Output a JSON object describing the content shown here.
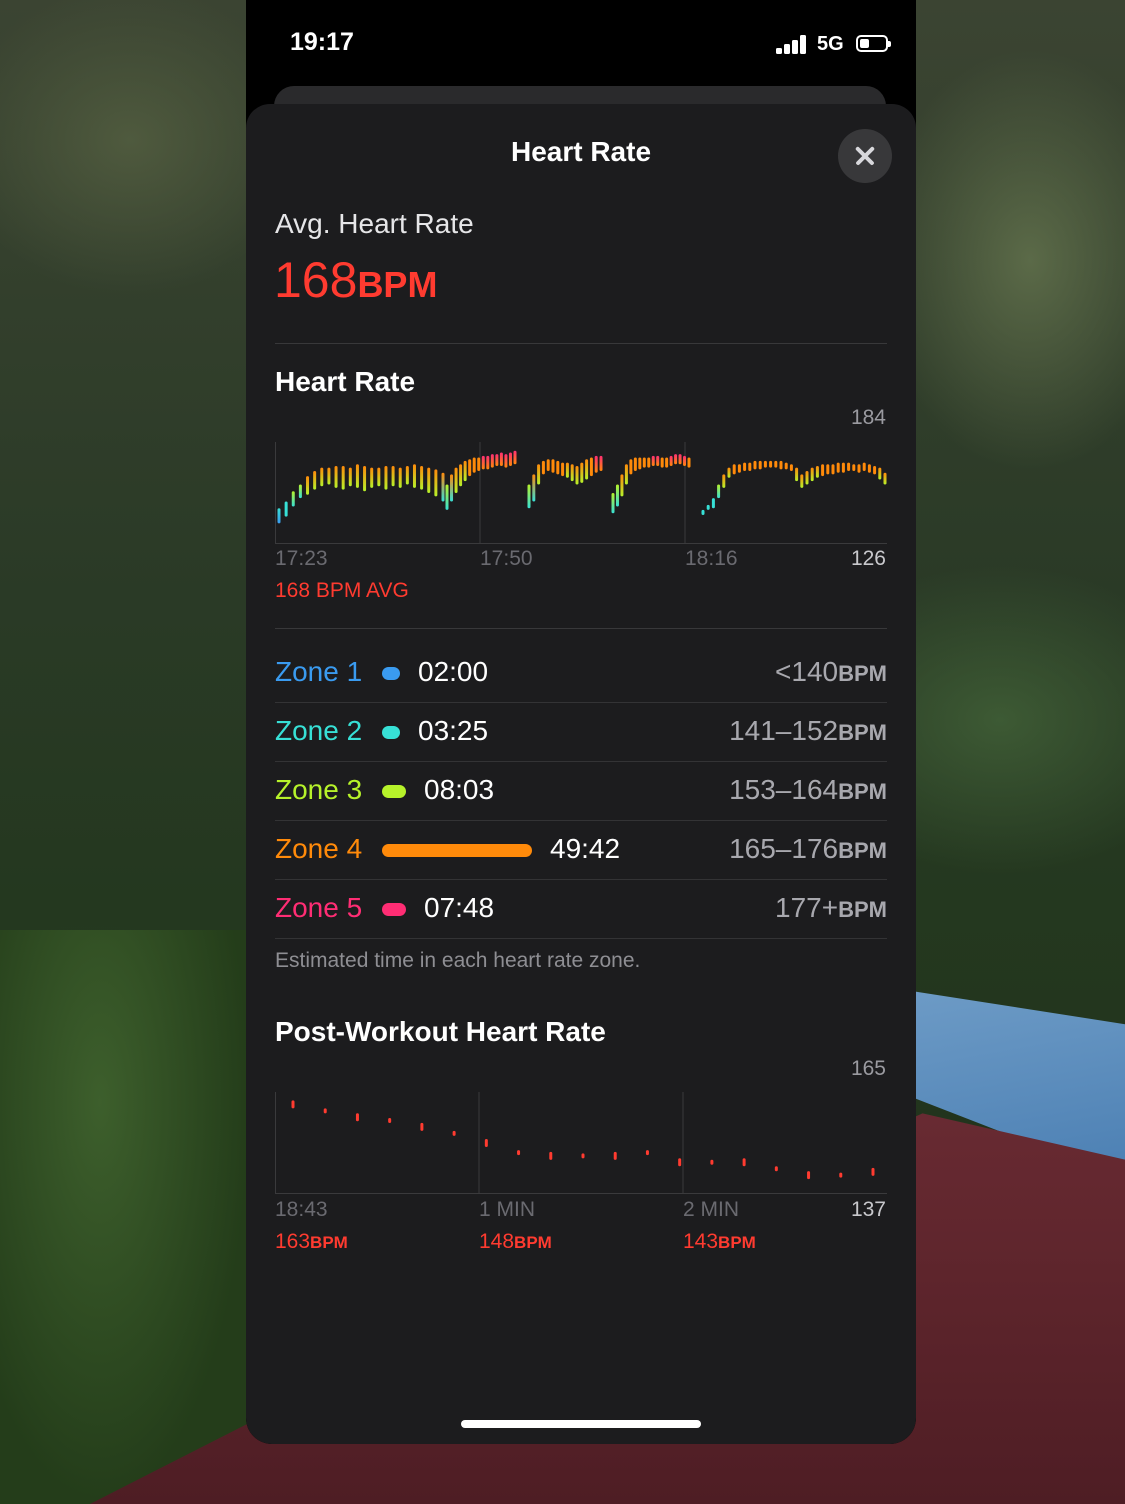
{
  "status_bar": {
    "time": "19:17",
    "network": "5G"
  },
  "sheet": {
    "title": "Heart Rate"
  },
  "average": {
    "label": "Avg. Heart Rate",
    "value": "168",
    "unit": "BPM"
  },
  "hr_chart": {
    "title": "Heart Rate",
    "y_max_label": "184",
    "y_min_label": "126",
    "x_ticks": [
      "17:23",
      "17:50",
      "18:16"
    ],
    "avg_note": "168 BPM AVG"
  },
  "zones": [
    {
      "name": "Zone 1",
      "time": "02:00",
      "range": "<140",
      "unit": "BPM",
      "color": "#3a9bf0",
      "fraction": 0.03
    },
    {
      "name": "Zone 2",
      "time": "03:25",
      "range": "141–152",
      "unit": "BPM",
      "color": "#37e0d6",
      "fraction": 0.05
    },
    {
      "name": "Zone 3",
      "time": "08:03",
      "range": "153–164",
      "unit": "BPM",
      "color": "#b6f22a",
      "fraction": 0.11
    },
    {
      "name": "Zone 4",
      "time": "49:42",
      "range": "165–176",
      "unit": "BPM",
      "color": "#ff8a0a",
      "fraction": 0.7
    },
    {
      "name": "Zone 5",
      "time": "07:48",
      "range": "177+",
      "unit": "BPM",
      "color": "#ff2d74",
      "fraction": 0.11
    }
  ],
  "zones_footnote": "Estimated time in each heart rate zone.",
  "post_workout": {
    "title": "Post-Workout Heart Rate",
    "y_max_label": "165",
    "y_min_label": "137",
    "x_ticks": [
      "18:43",
      "1 MIN",
      "2 MIN"
    ],
    "readings": [
      {
        "value": "163",
        "unit": "BPM"
      },
      {
        "value": "148",
        "unit": "BPM"
      },
      {
        "value": "143",
        "unit": "BPM"
      }
    ]
  },
  "chart_data": [
    {
      "type": "bar",
      "title": "Heart Rate",
      "x_ticks": [
        "17:23",
        "17:50",
        "18:16"
      ],
      "ylim": [
        126,
        184
      ],
      "segments": [
        {
          "low": [
            137,
            141,
            147,
            152,
            154,
            157,
            159,
            160,
            158,
            157,
            159,
            158,
            156,
            158,
            159,
            157,
            159,
            158,
            160,
            158,
            157,
            155,
            153,
            150
          ],
          "high": [
            146,
            150,
            156,
            160,
            165,
            168,
            170,
            170,
            171,
            171,
            170,
            172,
            171,
            170,
            170,
            171,
            171,
            170,
            171,
            172,
            171,
            170,
            169,
            167
          ]
        },
        {
          "low": [
            145,
            150,
            155,
            159,
            162,
            165,
            167,
            168,
            169,
            169,
            170,
            171,
            171,
            170,
            171,
            172
          ],
          "high": [
            160,
            166,
            170,
            172,
            174,
            175,
            176,
            176,
            177,
            177,
            178,
            178,
            179,
            178,
            179,
            180
          ]
        },
        {
          "low": [
            146,
            150,
            160,
            166,
            168,
            167,
            166,
            165,
            164,
            162,
            160,
            161,
            163,
            165,
            167,
            168
          ],
          "high": [
            160,
            166,
            172,
            174,
            175,
            175,
            174,
            173,
            173,
            172,
            171,
            173,
            175,
            176,
            177,
            177
          ]
        },
        {
          "low": [
            143,
            147,
            153,
            160,
            166,
            168,
            169,
            170,
            170,
            171,
            171,
            170,
            170,
            171,
            172,
            172,
            171,
            170
          ],
          "high": [
            155,
            160,
            166,
            172,
            175,
            176,
            176,
            176,
            176,
            177,
            177,
            176,
            176,
            177,
            178,
            178,
            177,
            176
          ]
        },
        {
          "low": [
            142,
            145,
            146,
            152,
            158,
            164,
            166,
            167,
            168,
            168,
            169,
            169,
            170,
            170,
            170,
            169,
            169,
            168,
            162,
            158,
            160,
            162,
            164,
            165,
            166,
            166,
            167,
            167,
            168,
            168,
            167,
            168,
            167,
            166,
            163,
            160
          ],
          "high": [
            145,
            148,
            152,
            160,
            166,
            170,
            172,
            172,
            173,
            173,
            174,
            174,
            174,
            174,
            174,
            174,
            173,
            172,
            170,
            166,
            168,
            170,
            171,
            172,
            172,
            172,
            173,
            173,
            173,
            172,
            172,
            173,
            172,
            171,
            170,
            167
          ]
        }
      ],
      "isolated_points": [
        140,
        140,
        140,
        140
      ]
    },
    {
      "type": "scatter",
      "title": "Post-Workout Heart Rate",
      "x_ticks": [
        "18:43",
        "1 MIN",
        "2 MIN"
      ],
      "ylim": [
        137,
        165
      ],
      "values": [
        163,
        161,
        159,
        158,
        156,
        154,
        151,
        148,
        147,
        147,
        147,
        148,
        145,
        145,
        145,
        143,
        141,
        141,
        142
      ]
    }
  ]
}
